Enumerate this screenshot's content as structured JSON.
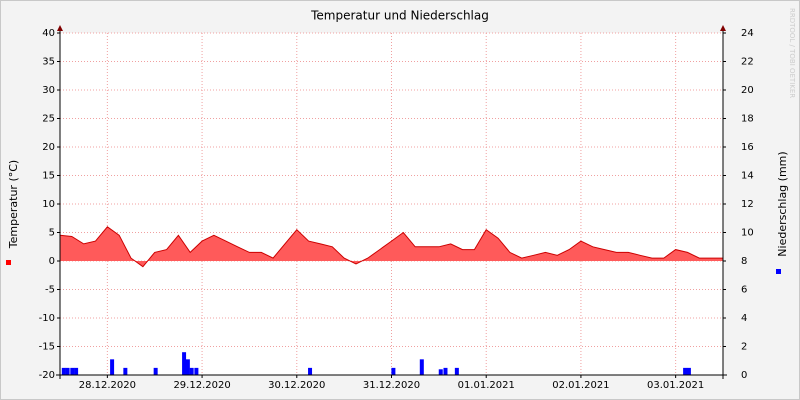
{
  "chart_data": {
    "type": "area",
    "title": "Temperatur und Niederschlag",
    "y_label": "Temperatur (°C)",
    "y2_label": "Niederschlag (mm)",
    "watermark": "RRDTOOL / TOBI OETIKER",
    "xlim": [
      -0.5,
      6.5
    ],
    "xticks": [
      {
        "value": 0,
        "label": "28.12.2020"
      },
      {
        "value": 1,
        "label": "29.12.2020"
      },
      {
        "value": 2,
        "label": "30.12.2020"
      },
      {
        "value": 3,
        "label": "31.12.2020"
      },
      {
        "value": 4,
        "label": "01.01.2021"
      },
      {
        "value": 5,
        "label": "02.01.2021"
      },
      {
        "value": 6,
        "label": "03.01.2021"
      }
    ],
    "ylim": [
      -20,
      40
    ],
    "yticks": [
      -20,
      -15,
      -10,
      -5,
      0,
      5,
      10,
      15,
      20,
      25,
      30,
      35,
      40
    ],
    "y2lim": [
      0,
      24
    ],
    "y2ticks": [
      0,
      2,
      4,
      6,
      8,
      10,
      12,
      14,
      16,
      18,
      20,
      22,
      24
    ],
    "grid": true,
    "series": [
      {
        "type": "area",
        "color": "#ff5a5a",
        "line_color": "#cc0000",
        "x": [
          -0.5,
          -0.375,
          -0.25,
          -0.125,
          0,
          0.125,
          0.25,
          0.375,
          0.5,
          0.625,
          0.75,
          0.875,
          1,
          1.125,
          1.25,
          1.375,
          1.5,
          1.625,
          1.75,
          1.875,
          2,
          2.125,
          2.25,
          2.375,
          2.5,
          2.625,
          2.75,
          2.875,
          3,
          3.125,
          3.25,
          3.375,
          3.5,
          3.625,
          3.75,
          3.875,
          4,
          4.125,
          4.25,
          4.375,
          4.5,
          4.625,
          4.75,
          4.875,
          5,
          5.125,
          5.25,
          5.375,
          5.5,
          5.625,
          5.75,
          5.875,
          6,
          6.125,
          6.25,
          6.375,
          6.5
        ],
        "values": [
          4.5,
          4.3,
          3,
          3.5,
          6,
          4.5,
          0.5,
          -1,
          1.5,
          2,
          4.5,
          1.5,
          3.5,
          4.5,
          3.5,
          2.5,
          1.5,
          1.5,
          0.5,
          3,
          5.5,
          3.5,
          3,
          2.5,
          0.5,
          -0.5,
          0.5,
          2,
          3.5,
          5,
          2.5,
          2.5,
          2.5,
          3,
          2,
          2,
          5.5,
          4,
          1.5,
          0.5,
          1,
          1.5,
          1,
          2,
          3.5,
          2.5,
          2,
          1.5,
          1.5,
          1,
          0.5,
          0.5,
          2,
          1.5,
          0.5,
          0.5,
          0.5
        ]
      },
      {
        "type": "bar",
        "axis": "y2",
        "color": "#0000ff",
        "x": [
          -0.46,
          -0.42,
          -0.37,
          -0.33,
          0.05,
          0.19,
          0.51,
          0.81,
          0.85,
          0.89,
          0.94,
          2.14,
          3.02,
          3.32,
          3.52,
          3.57,
          3.69,
          6.1,
          6.14
        ],
        "values": [
          0.5,
          0.5,
          0.5,
          0.5,
          1.1,
          0.5,
          0.5,
          1.6,
          1.1,
          0.5,
          0.5,
          0.5,
          0.5,
          1.1,
          0.4,
          0.5,
          0.5,
          0.5,
          0.5
        ]
      }
    ]
  }
}
